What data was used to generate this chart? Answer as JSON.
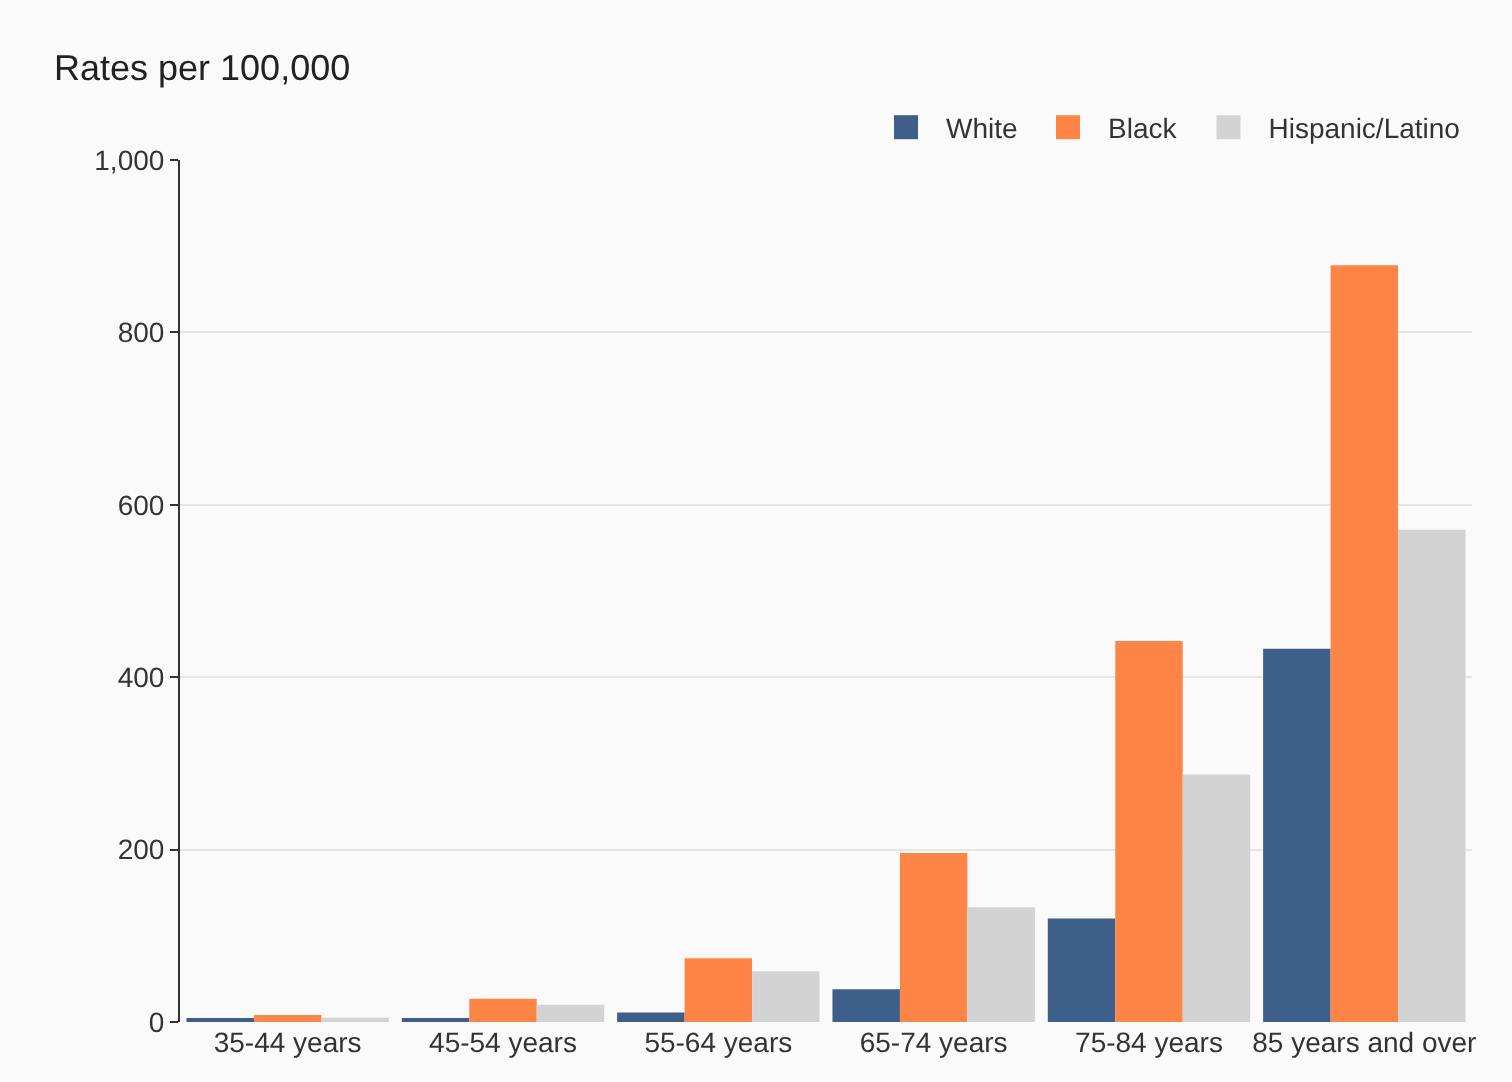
{
  "chart_data": {
    "type": "bar",
    "ylabel": "Rates per 100,000",
    "categories": [
      "35-44 years",
      "45-54 years",
      "55-64 years",
      "65-74 years",
      "75-84 years",
      "85 years and over"
    ],
    "series": [
      {
        "name": "White",
        "color": "#3d5f8a",
        "values": [
          3,
          3,
          11,
          38,
          120,
          433
        ]
      },
      {
        "name": "Black",
        "color": "#ff8547",
        "values": [
          8,
          27,
          74,
          196,
          442,
          878
        ]
      },
      {
        "name": "Hispanic/Latino",
        "color": "#d3d3d3",
        "values": [
          5,
          20,
          59,
          133,
          287,
          571
        ]
      }
    ],
    "ylim": [
      0,
      1000
    ],
    "yticks": [
      0,
      200,
      400,
      600,
      800,
      {
        "value": 1000,
        "label": "1,000"
      }
    ],
    "grid": "y",
    "legend": "top right"
  }
}
